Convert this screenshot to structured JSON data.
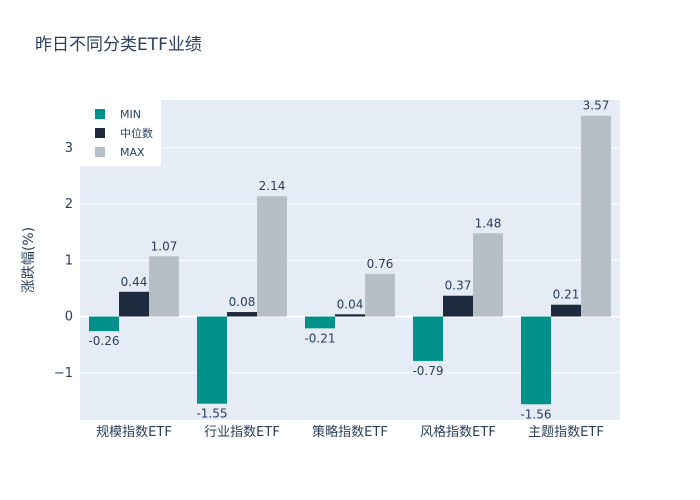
{
  "colors": {
    "min": "#00918a",
    "median": "#1e2a3d",
    "max": "#b7bfc6",
    "plot_bg": "#e5ecf6"
  },
  "chart_data": {
    "type": "bar",
    "title": "昨日不同分类ETF业绩",
    "xlabel": "",
    "ylabel": "涨跌幅(%)",
    "categories": [
      "规模指数ETF",
      "行业指数ETF",
      "策略指数ETF",
      "风格指数ETF",
      "主题指数ETF"
    ],
    "series": [
      {
        "name": "MIN",
        "values": [
          -0.26,
          -1.55,
          -0.21,
          -0.79,
          -1.56
        ]
      },
      {
        "name": "中位数",
        "values": [
          0.44,
          0.08,
          0.04,
          0.37,
          0.21
        ]
      },
      {
        "name": "MAX",
        "values": [
          1.07,
          2.14,
          0.76,
          1.48,
          3.57
        ]
      }
    ],
    "value_labels": [
      [
        "-0.26",
        "-1.55",
        "-0.21",
        "-0.79",
        "-1.56"
      ],
      [
        "0.44",
        "0.08",
        "0.04",
        "0.37",
        "0.21"
      ],
      [
        "1.07",
        "2.14",
        "0.76",
        "1.48",
        "3.57"
      ]
    ],
    "yticks": [
      -1,
      0,
      1,
      2,
      3
    ],
    "ytick_labels": [
      "−1",
      "0",
      "1",
      "2",
      "3"
    ],
    "ylim": [
      -1.84,
      3.85
    ],
    "legend_position": "top-left",
    "grid": true
  }
}
